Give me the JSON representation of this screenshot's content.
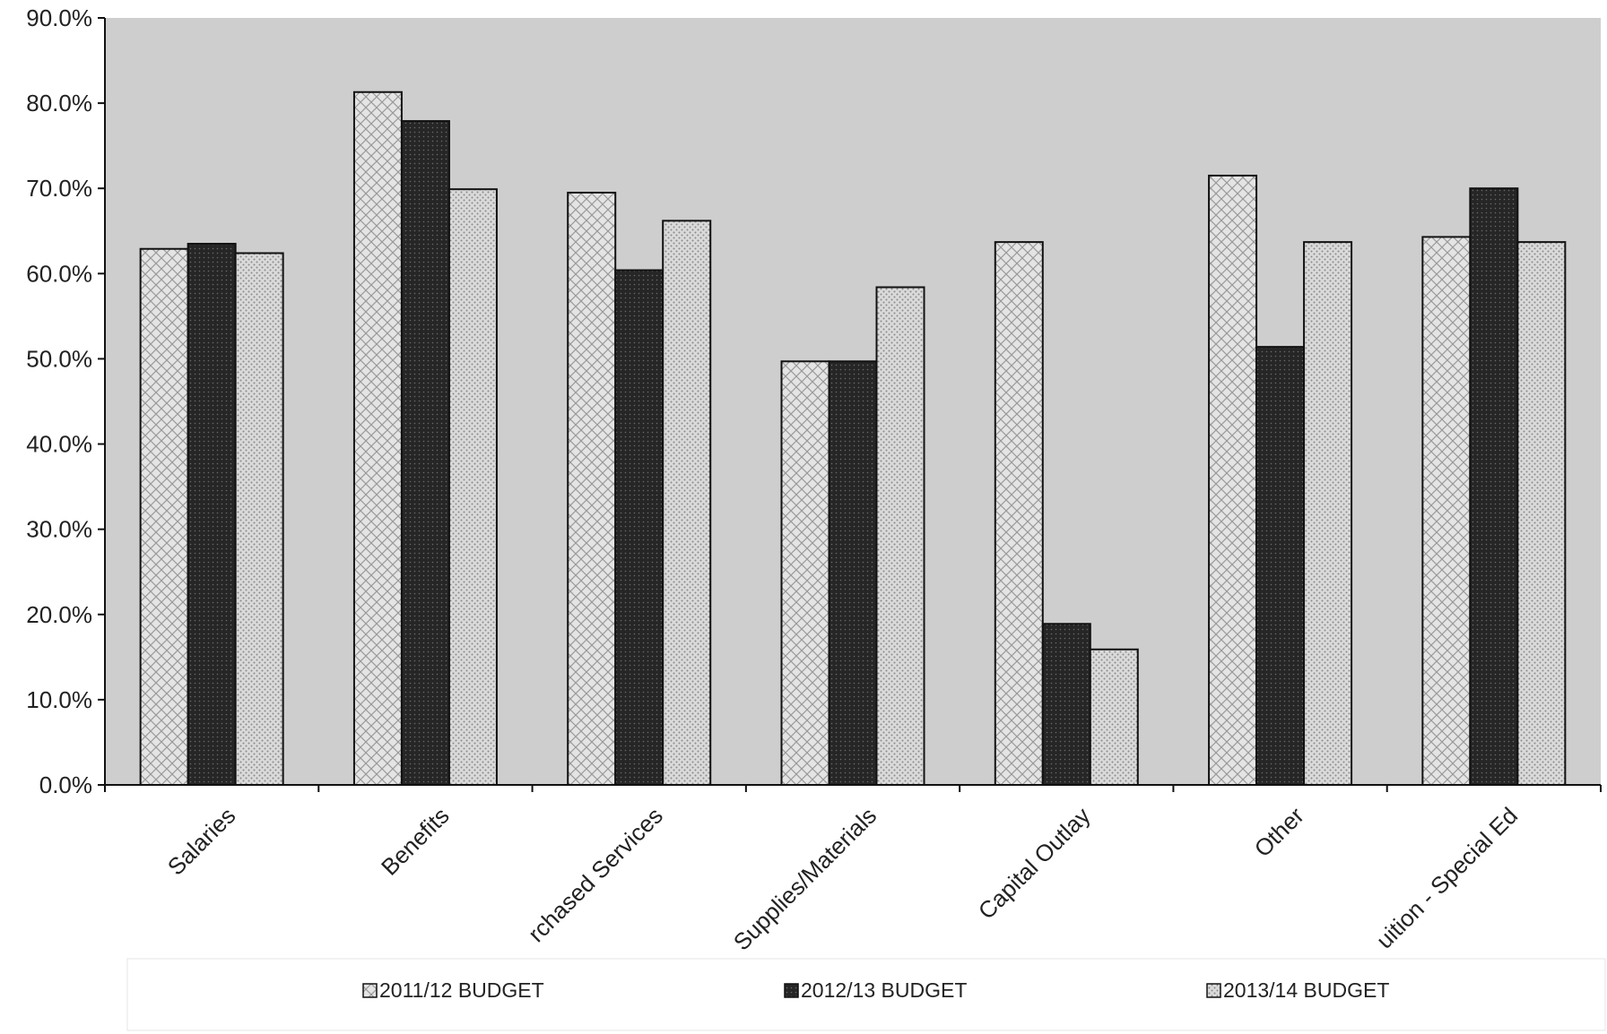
{
  "chart_data": {
    "type": "bar",
    "categories": [
      "Salaries",
      "Benefits",
      "rchased Services",
      "Supplies/Materials",
      "Capital Outlay",
      "Other",
      "uition - Special Ed"
    ],
    "series": [
      {
        "name": "2011/12 BUDGET",
        "values": [
          62.9,
          81.3,
          69.5,
          49.7,
          63.7,
          71.5,
          64.3
        ]
      },
      {
        "name": "2012/13 BUDGET",
        "values": [
          63.5,
          77.9,
          60.4,
          49.7,
          18.9,
          51.4,
          70.0
        ]
      },
      {
        "name": "2013/14 BUDGET",
        "values": [
          62.4,
          69.9,
          66.2,
          58.4,
          15.9,
          63.7,
          63.7
        ]
      }
    ],
    "y_ticks": [
      "0.0%",
      "10.0%",
      "20.0%",
      "30.0%",
      "40.0%",
      "50.0%",
      "60.0%",
      "70.0%",
      "80.0%",
      "90.0%"
    ],
    "ylim": [
      0,
      90
    ],
    "title": "",
    "xlabel": "",
    "ylabel": "",
    "grid": false,
    "legend_position": "bottom",
    "colors": {
      "plot_background": "#cfcfcf",
      "series_1": "#e2e2e2",
      "series_2": "#2b2b2b",
      "series_3": "#d2d2d2",
      "outline": "#111111"
    }
  }
}
